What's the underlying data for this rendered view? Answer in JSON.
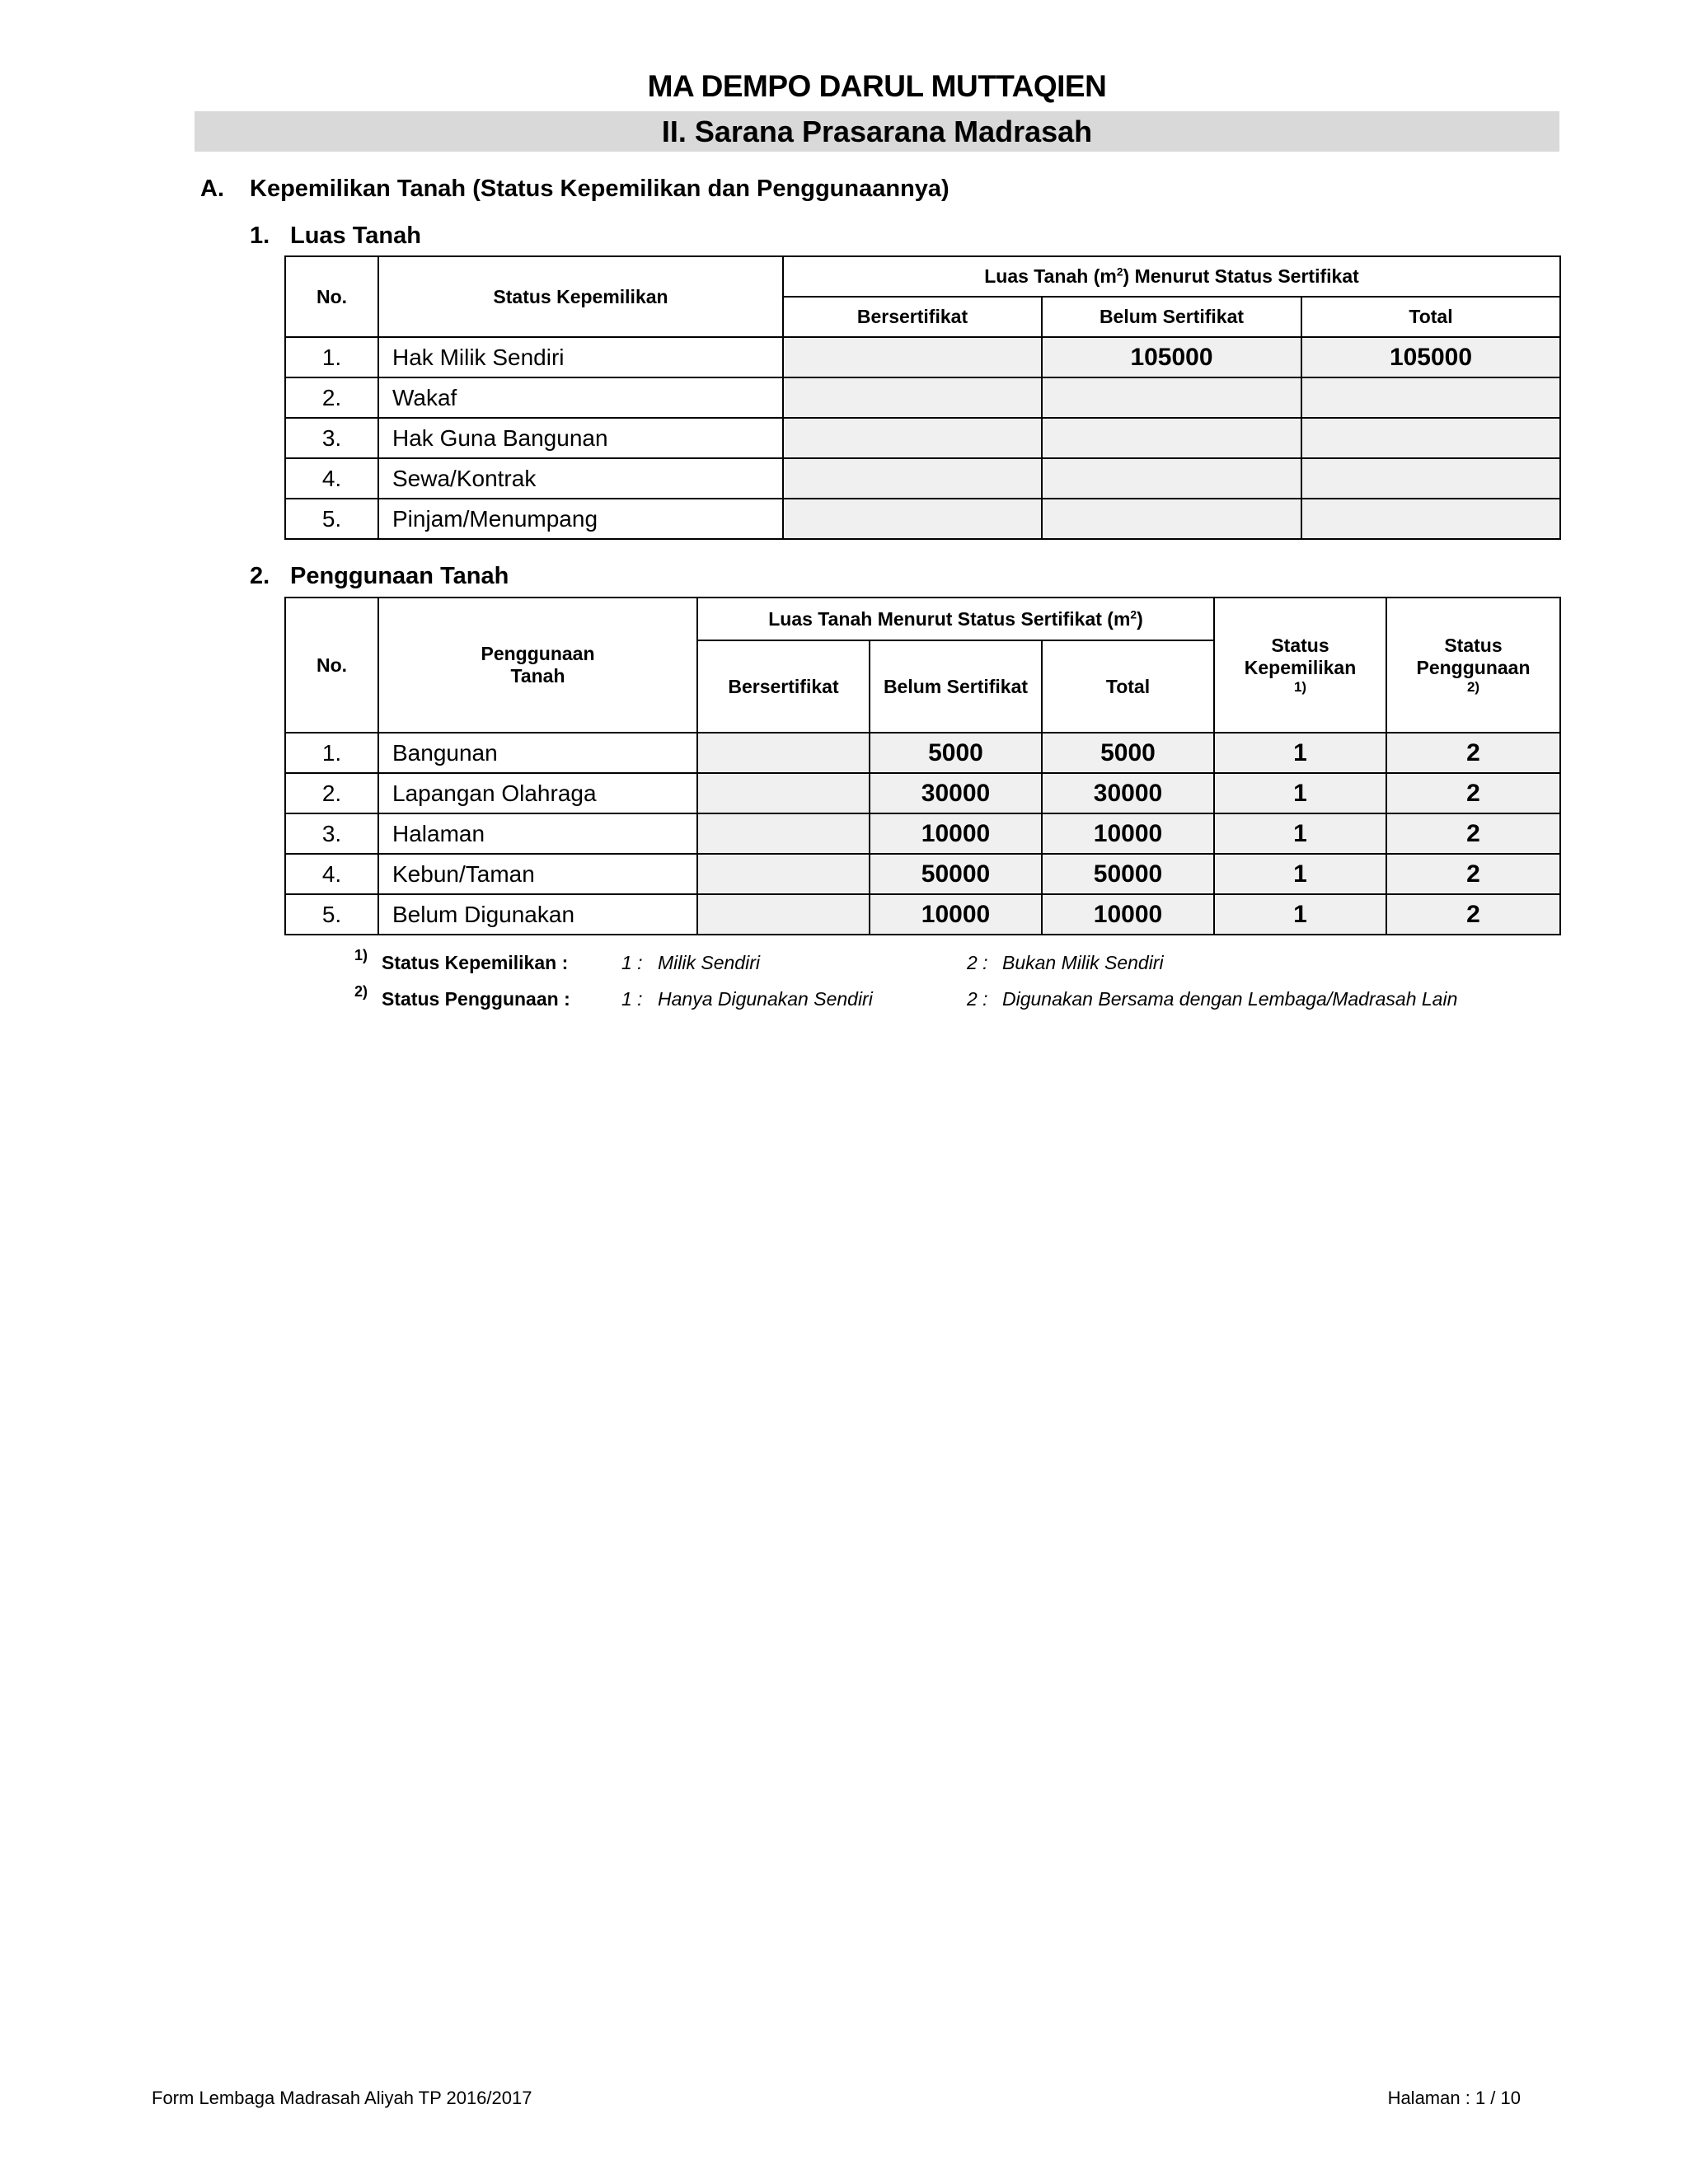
{
  "header": {
    "title": "MA DEMPO DARUL MUTTAQIEN",
    "subtitle": "II. Sarana Prasarana Madrasah"
  },
  "section_a": {
    "marker": "A.",
    "title": "Kepemilikan Tanah (Status Kepemilikan dan Penggunaannya)"
  },
  "luas_tanah": {
    "marker": "1.",
    "title": "Luas Tanah",
    "headers": {
      "no": "No.",
      "status": "Status Kepemilikan",
      "group_pre": "Luas Tanah (m",
      "group_sup": "2",
      "group_post": ") Menurut Status Sertifikat",
      "bersertifikat": "Bersertifikat",
      "belum": "Belum Sertifikat",
      "total": "Total"
    },
    "rows": [
      {
        "no": "1.",
        "label": "Hak Milik Sendiri",
        "bersertifikat": "",
        "belum": "105000",
        "total": "105000"
      },
      {
        "no": "2.",
        "label": "Wakaf",
        "bersertifikat": "",
        "belum": "",
        "total": ""
      },
      {
        "no": "3.",
        "label": "Hak Guna Bangunan",
        "bersertifikat": "",
        "belum": "",
        "total": ""
      },
      {
        "no": "4.",
        "label": "Sewa/Kontrak",
        "bersertifikat": "",
        "belum": "",
        "total": ""
      },
      {
        "no": "5.",
        "label": "Pinjam/Menumpang",
        "bersertifikat": "",
        "belum": "",
        "total": ""
      }
    ]
  },
  "penggunaan_tanah": {
    "marker": "2.",
    "title": "Penggunaan Tanah",
    "headers": {
      "no": "No.",
      "penggunaan_1": "Penggunaan",
      "penggunaan_2": "Tanah",
      "group_pre": "Luas Tanah Menurut Status Sertifikat (m",
      "group_sup": "2",
      "group_post": ")",
      "bersertifikat": "Bersertifikat",
      "belum": "Belum Sertifikat",
      "total": "Total",
      "kep_1": "Status",
      "kep_2": "Kepemilikan",
      "kep_3": "1)",
      "peng_1": "Status",
      "peng_2": "Penggunaan",
      "peng_3": "2)"
    },
    "rows": [
      {
        "no": "1.",
        "label": "Bangunan",
        "bersertifikat": "",
        "belum": "5000",
        "total": "5000",
        "kepemilikan": "1",
        "penggunaan": "2"
      },
      {
        "no": "2.",
        "label": "Lapangan Olahraga",
        "bersertifikat": "",
        "belum": "30000",
        "total": "30000",
        "kepemilikan": "1",
        "penggunaan": "2"
      },
      {
        "no": "3.",
        "label": "Halaman",
        "bersertifikat": "",
        "belum": "10000",
        "total": "10000",
        "kepemilikan": "1",
        "penggunaan": "2"
      },
      {
        "no": "4.",
        "label": "Kebun/Taman",
        "bersertifikat": "",
        "belum": "50000",
        "total": "50000",
        "kepemilikan": "1",
        "penggunaan": "2"
      },
      {
        "no": "5.",
        "label": "Belum Digunakan",
        "bersertifikat": "",
        "belum": "10000",
        "total": "10000",
        "kepemilikan": "1",
        "penggunaan": "2"
      }
    ]
  },
  "footnotes": [
    {
      "mark": "1)",
      "label": "Status Kepemilikan :",
      "opt1_key": "1 :",
      "opt1": "Milik Sendiri",
      "opt2_key": "2 :",
      "opt2": "Bukan Milik Sendiri"
    },
    {
      "mark": "2)",
      "label": "Status Penggunaan :",
      "opt1_key": "1 :",
      "opt1": "Hanya Digunakan Sendiri",
      "opt2_key": "2 :",
      "opt2": "Digunakan Bersama dengan Lembaga/Madrasah Lain"
    }
  ],
  "footer": {
    "left": "Form Lembaga Madrasah Aliyah TP 2016/2017",
    "right": "Halaman : 1 / 10"
  }
}
